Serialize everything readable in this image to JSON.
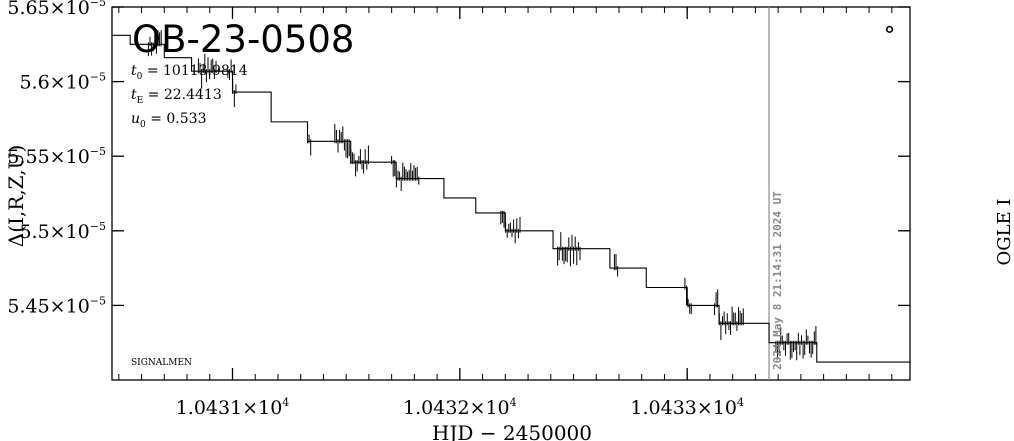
{
  "chart_data": {
    "type": "line",
    "title": "OB-23-0508",
    "xlabel": "HJD − 2450000",
    "ylabel": "Δ(I,R,Z,U)",
    "ylim": [
      5.4e-05,
      5.65e-05
    ],
    "xlim": [
      10430.47,
      10433.98
    ],
    "x_ticks": [
      {
        "value": 10431,
        "mantissa": "1.0431×10",
        "exp": "4"
      },
      {
        "value": 10432,
        "mantissa": "1.0432×10",
        "exp": "4"
      },
      {
        "value": 10433,
        "mantissa": "1.0433×10",
        "exp": "4"
      }
    ],
    "y_ticks": [
      {
        "value": 5.65e-05,
        "mantissa": "5.65×10",
        "exp": "−5"
      },
      {
        "value": 5.6e-05,
        "mantissa": "5.6×10",
        "exp": "−5"
      },
      {
        "value": 5.55e-05,
        "mantissa": "5.55×10",
        "exp": "−5"
      },
      {
        "value": 5.5e-05,
        "mantissa": "5.5×10",
        "exp": "−5"
      },
      {
        "value": 5.45e-05,
        "mantissa": "5.45×10",
        "exp": "−5"
      }
    ],
    "parameters": [
      {
        "symbol": "t",
        "sub": "0",
        "value": "= 10113.9814"
      },
      {
        "symbol": "t",
        "sub": "E",
        "value": "= 22.4413"
      },
      {
        "symbol": "u",
        "sub": "0",
        "value": "= 0.533"
      }
    ],
    "annotations": {
      "signalmen": "SIGNALMEN",
      "survey": "OGLE I",
      "timestamp": "2024 May  8 21:14:31 2024 UT",
      "now_x": 10433.36
    },
    "series": [
      {
        "steps": [
          [
            10430.47,
            5.631e-05
          ],
          [
            10430.55,
            5.625e-05
          ],
          [
            10430.7,
            5.616e-05
          ],
          [
            10430.82,
            5.607e-05
          ],
          [
            10431.0,
            5.593e-05
          ],
          [
            10431.17,
            5.573e-05
          ],
          [
            10431.33,
            5.56e-05
          ],
          [
            10431.52,
            5.546e-05
          ],
          [
            10431.72,
            5.535e-05
          ],
          [
            10431.93,
            5.522e-05
          ],
          [
            10432.07,
            5.512e-05
          ],
          [
            10432.2,
            5.5e-05
          ],
          [
            10432.41,
            5.488e-05
          ],
          [
            10432.66,
            5.475e-05
          ],
          [
            10432.82,
            5.462e-05
          ],
          [
            10433.0,
            5.45e-05
          ],
          [
            10433.14,
            5.438e-05
          ],
          [
            10433.36,
            5.425e-05
          ],
          [
            10433.57,
            5.412e-05
          ],
          [
            10433.98,
            5.412e-05
          ]
        ],
        "jitter_bands": [
          [
            10430.63,
            10430.69
          ],
          [
            10430.85,
            10430.93
          ],
          [
            10430.98,
            10431.02
          ],
          [
            10431.33,
            10431.35
          ],
          [
            10431.45,
            10431.6
          ],
          [
            10431.7,
            10431.82
          ],
          [
            10432.18,
            10432.27
          ],
          [
            10432.43,
            10432.53
          ],
          [
            10432.68,
            10432.7
          ],
          [
            10432.99,
            10433.02
          ],
          [
            10433.12,
            10433.25
          ],
          [
            10433.39,
            10433.57
          ]
        ],
        "far_point": [
          10433.89,
          5.635e-05
        ]
      }
    ]
  }
}
